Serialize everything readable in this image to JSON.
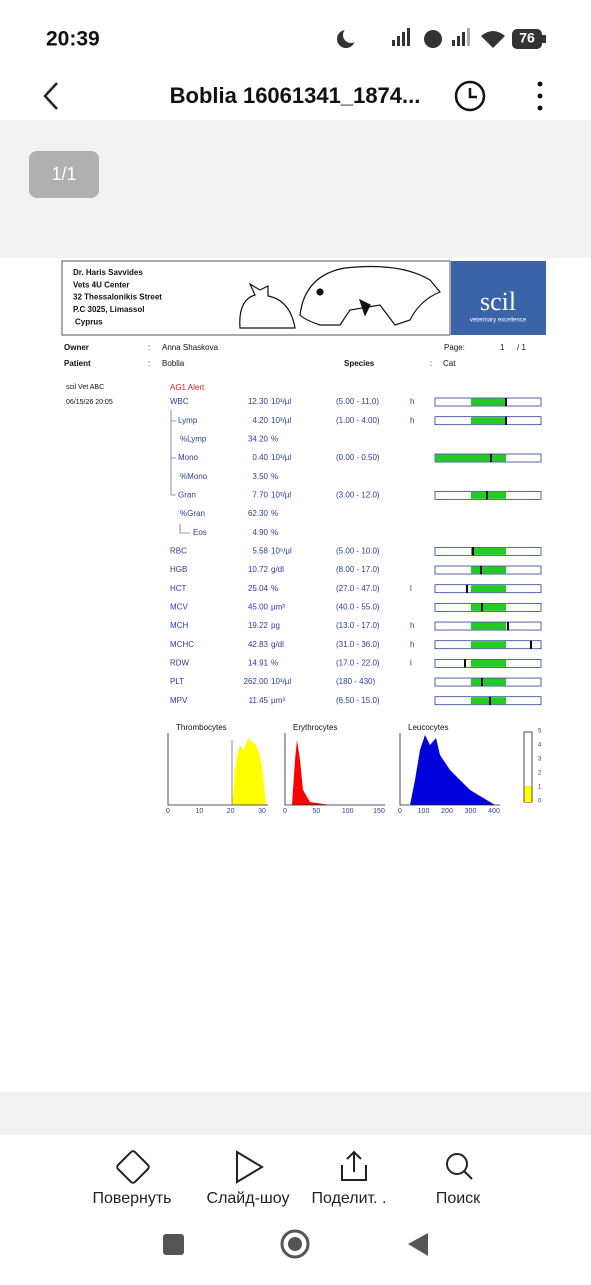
{
  "status_bar": {
    "time": "20:39",
    "battery": "76"
  },
  "toolbar": {
    "title": "Boblia 16061341_1874..."
  },
  "page_indicator": "1/1",
  "report": {
    "clinic": [
      "Dr. Haris Savvides",
      "Vets 4U Center",
      "32 Thessalonikis Street",
      "P.C 3025, Limassol",
      "Cyprus"
    ],
    "logo": {
      "name": "scil",
      "tagline": "veterinary excellence"
    },
    "owner_label": "Owner",
    "owner": "Anna Shaskova",
    "patient_label": "Patient",
    "patient": "Boblia",
    "species_label": "Species",
    "species": "Cat",
    "page_label": "Page:",
    "page": "1",
    "page_total": "/ 1",
    "separator": ":",
    "instrument": "scil Vet ABC",
    "date": "06/15/26 20:05",
    "alert": "AG1 Alert",
    "rows": [
      {
        "name": "WBC",
        "value": "12.30",
        "unit": "10³/µl",
        "range": "(5.00 - 11.0)",
        "flag": "h"
      },
      {
        "name": "Lymp",
        "value": "4.20",
        "unit": "10³/µl",
        "range": "(1.00 - 4.00)",
        "flag": "h"
      },
      {
        "name": "%Lymp",
        "value": "34.20",
        "unit": "%"
      },
      {
        "name": "Mono",
        "value": "0.40",
        "unit": "10³/µl",
        "range": "(0.00 - 0.50)"
      },
      {
        "name": "%Mono",
        "value": "3.50",
        "unit": "%"
      },
      {
        "name": "Gran",
        "value": "7.70",
        "unit": "10³/µl",
        "range": "(3.00 - 12.0)"
      },
      {
        "name": "%Gran",
        "value": "62.30",
        "unit": "%"
      },
      {
        "name": "Eos",
        "value": "4.90",
        "unit": "%"
      },
      {
        "name": "RBC",
        "value": "5.58",
        "unit": "10⁶/µl",
        "range": "(5.00 - 10.0)"
      },
      {
        "name": "HGB",
        "value": "10.72",
        "unit": "g/dl",
        "range": "(8.00 - 17.0)"
      },
      {
        "name": "HCT",
        "value": "25.04",
        "unit": "%",
        "range": "(27.0 - 47.0)",
        "flag": "l"
      },
      {
        "name": "MCV",
        "value": "45.00",
        "unit": "µm³",
        "range": "(40.0 - 55.0)"
      },
      {
        "name": "MCH",
        "value": "19.22",
        "unit": "pg",
        "range": "(13.0 - 17.0)",
        "flag": "h"
      },
      {
        "name": "MCHC",
        "value": "42.83",
        "unit": "g/dl",
        "range": "(31.0 - 36.0)",
        "flag": "h"
      },
      {
        "name": "RDW",
        "value": "14.91",
        "unit": "%",
        "range": "(17.0 - 22.0)",
        "flag": "l"
      },
      {
        "name": "PLT",
        "value": "262.00",
        "unit": "10³/µl",
        "range": "(180 - 430)"
      },
      {
        "name": "MPV",
        "value": "11.45",
        "unit": "µm³",
        "range": "(6.50 - 15.0)"
      }
    ],
    "histograms": [
      {
        "title": "Thrombocytes",
        "ticks": [
          "0",
          "10",
          "20",
          "30"
        ]
      },
      {
        "title": "Erythrocytes",
        "ticks": [
          "0",
          "50",
          "100",
          "150"
        ]
      },
      {
        "title": "Leucocytes",
        "ticks": [
          "0",
          "100",
          "200",
          "300",
          "400"
        ]
      }
    ],
    "scale_ticks": [
      "5",
      "4",
      "3",
      "2",
      "1",
      "0"
    ]
  },
  "bottom_bar": [
    "Повернуть",
    "Слайд-шоу",
    "Поделит. .",
    "Поиск"
  ]
}
